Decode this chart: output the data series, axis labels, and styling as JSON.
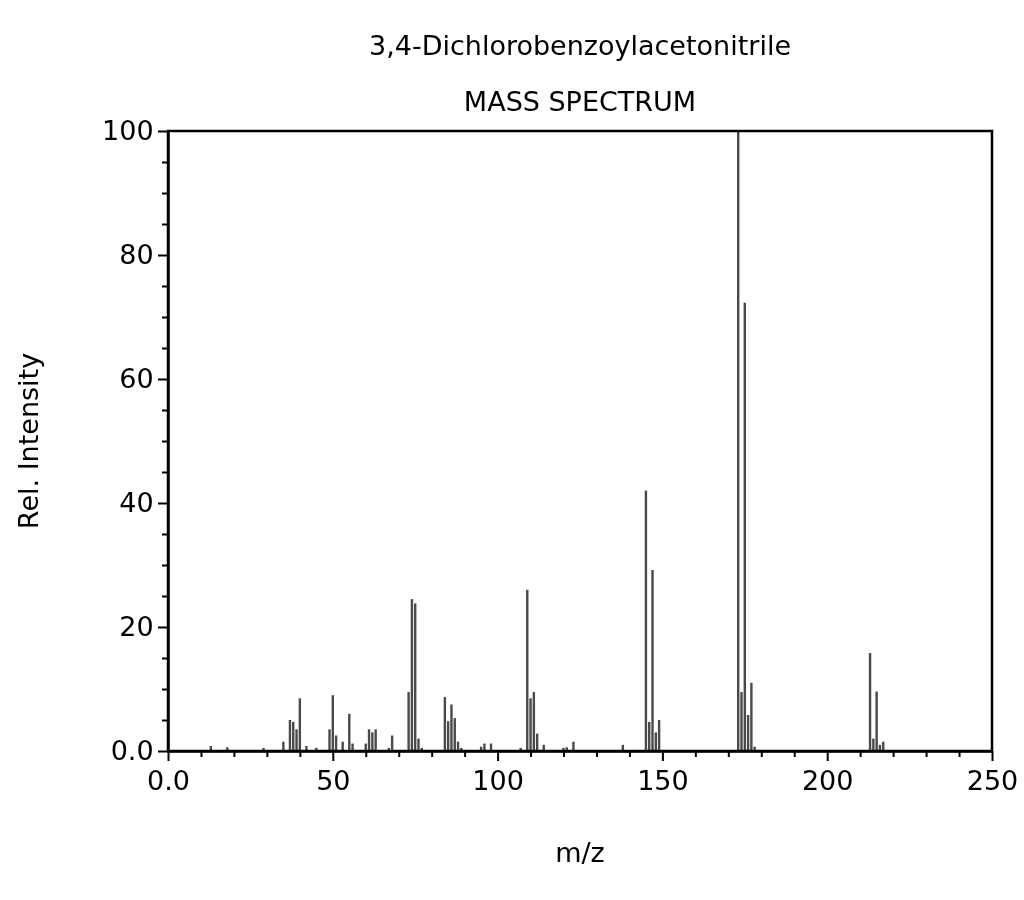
{
  "chart_data": {
    "type": "bar",
    "title": "3,4-Dichlorobenzoylacetonitrile",
    "subtitle": "MASS SPECTRUM",
    "xlabel": "m/z",
    "ylabel": "Rel. Intensity",
    "color": "#4a4a4a",
    "x": [
      13,
      18,
      29,
      35,
      37,
      38,
      39,
      40,
      42,
      45,
      49,
      50,
      51,
      53,
      55,
      56,
      60,
      61,
      62,
      63,
      67,
      68,
      73,
      74,
      75,
      76,
      77,
      84,
      85,
      86,
      87,
      88,
      89,
      95,
      96,
      98,
      107,
      109,
      110,
      111,
      112,
      114,
      120,
      121,
      123,
      138,
      145,
      146,
      147,
      148,
      149,
      173,
      174,
      175,
      176,
      177,
      178,
      213,
      214,
      215,
      216,
      217
    ],
    "values": [
      0.8,
      0.6,
      0.5,
      1.5,
      5,
      4.7,
      3.5,
      8.5,
      0.8,
      0.5,
      3.5,
      9,
      2.5,
      1.5,
      6,
      1.2,
      1.2,
      3.5,
      3,
      3.5,
      0.5,
      2.5,
      9.5,
      24.5,
      23.8,
      2,
      0.5,
      8.7,
      4.8,
      7.5,
      5.3,
      1.5,
      0.5,
      0.7,
      1.2,
      1.2,
      0.5,
      26,
      8.5,
      9.5,
      2.8,
      1,
      0.5,
      0.6,
      1.5,
      1,
      42,
      4.7,
      29.2,
      3,
      5,
      100,
      9.5,
      72.3,
      5.8,
      11,
      0.7,
      15.8,
      2,
      9.6,
      1,
      1.5
    ],
    "xlim": [
      0,
      250
    ],
    "ylim": [
      0,
      100
    ],
    "xticks": [
      {
        "value": 0,
        "label": "0.0"
      },
      {
        "value": 10,
        "label": null
      },
      {
        "value": 20,
        "label": null
      },
      {
        "value": 30,
        "label": null
      },
      {
        "value": 40,
        "label": null
      },
      50,
      {
        "value": 60,
        "label": null
      },
      {
        "value": 70,
        "label": null
      },
      {
        "value": 80,
        "label": null
      },
      {
        "value": 90,
        "label": null
      },
      100,
      {
        "value": 110,
        "label": null
      },
      {
        "value": 120,
        "label": null
      },
      {
        "value": 130,
        "label": null
      },
      {
        "value": 140,
        "label": null
      },
      150,
      {
        "value": 160,
        "label": null
      },
      {
        "value": 170,
        "label": null
      },
      {
        "value": 180,
        "label": null
      },
      {
        "value": 190,
        "label": null
      },
      200,
      {
        "value": 210,
        "label": null
      },
      {
        "value": 220,
        "label": null
      },
      {
        "value": 230,
        "label": null
      },
      {
        "value": 240,
        "label": null
      },
      250
    ],
    "yticks": [
      {
        "value": 0,
        "label": "0.0"
      },
      {
        "value": 5,
        "label": null
      },
      {
        "value": 10,
        "label": null
      },
      {
        "value": 15,
        "label": null
      },
      20,
      {
        "value": 25,
        "label": null
      },
      {
        "value": 30,
        "label": null
      },
      {
        "value": 35,
        "label": null
      },
      40,
      {
        "value": 45,
        "label": null
      },
      {
        "value": 50,
        "label": null
      },
      {
        "value": 55,
        "label": null
      },
      60,
      {
        "value": 65,
        "label": null
      },
      {
        "value": 70,
        "label": null
      },
      {
        "value": 75,
        "label": null
      },
      80,
      {
        "value": 85,
        "label": null
      },
      {
        "value": 90,
        "label": null
      },
      {
        "value": 95,
        "label": null
      },
      100
    ]
  }
}
